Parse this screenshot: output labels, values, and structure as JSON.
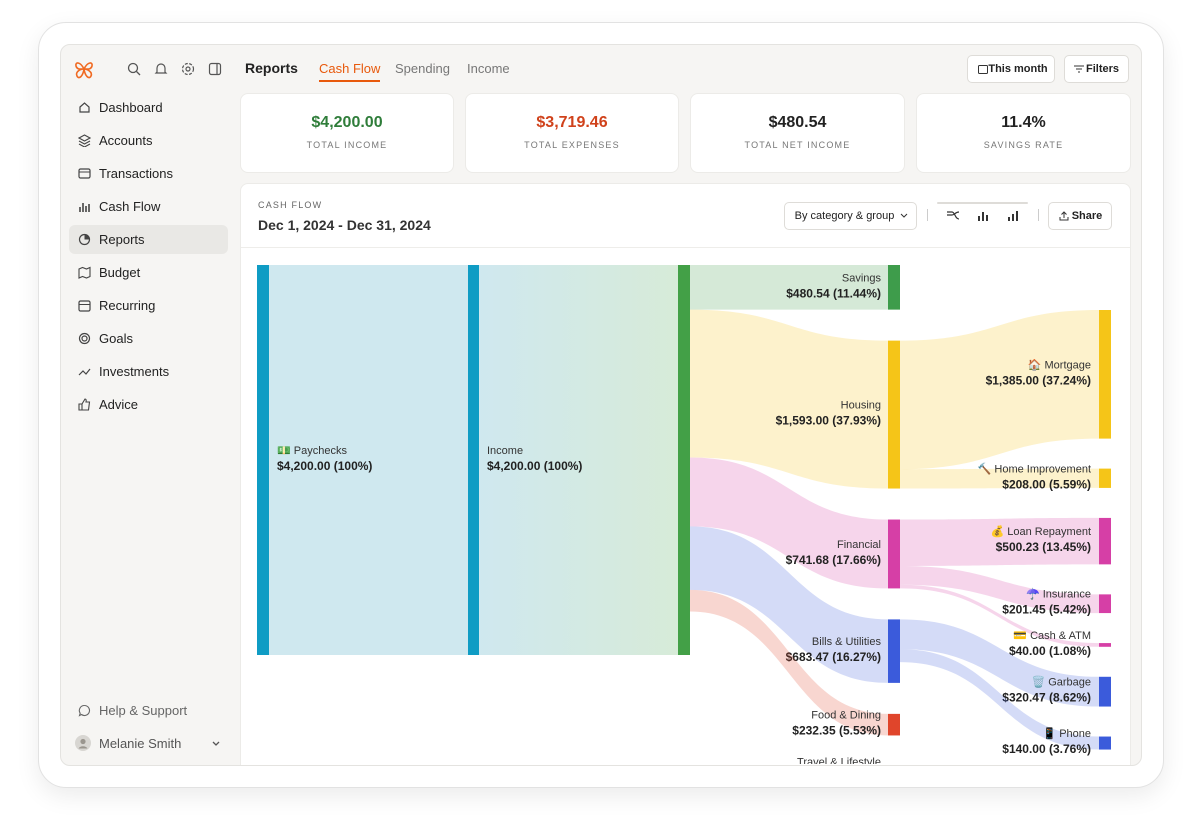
{
  "header": {
    "title": "Reports",
    "tabs": [
      "Cash Flow",
      "Spending",
      "Income"
    ],
    "buttons": [
      "This month",
      "Filters"
    ]
  },
  "sidebar": {
    "items": [
      "Dashboard",
      "Accounts",
      "Transactions",
      "Cash Flow",
      "Reports",
      "Budget",
      "Recurring",
      "Goals",
      "Investments",
      "Advice"
    ],
    "help": "Help & Support",
    "user": "Melanie Smith"
  },
  "summary": [
    {
      "value": "$4,200.00",
      "label": "TOTAL INCOME"
    },
    {
      "value": "$3,719.46",
      "label": "TOTAL EXPENSES"
    },
    {
      "value": "$480.54",
      "label": "TOTAL NET INCOME"
    },
    {
      "value": "11.4%",
      "label": "SAVINGS RATE"
    }
  ],
  "panel": {
    "label": "CASH FLOW",
    "date_range": "Dec 1, 2024 - Dec 31, 2024",
    "grouping": "By category & group",
    "share": "Share"
  },
  "sankey": {
    "source": {
      "name": "💵 Paychecks",
      "value": 4200,
      "value_label": "$4,200.00 (100%)",
      "color": "#0f9cc4"
    },
    "total": {
      "name": "Income",
      "value": 4200,
      "value_label": "$4,200.00 (100%)",
      "color": "#0f9cc4",
      "split_color": "#43a047"
    },
    "categories": [
      {
        "name": "Savings",
        "value": 480.54,
        "value_label": "$480.54 (11.44%)",
        "color": "#3e9c4b",
        "children": []
      },
      {
        "name": "Housing",
        "value": 1593,
        "value_label": "$1,593.00 (37.93%)",
        "color": "#f5c518",
        "children": [
          {
            "name": "🏠 Mortgage",
            "value": 1385,
            "value_label": "$1,385.00 (37.24%)"
          },
          {
            "name": "🔨 Home Improvement",
            "value": 208,
            "value_label": "$208.00 (5.59%)"
          }
        ]
      },
      {
        "name": "Financial",
        "value": 741.68,
        "value_label": "$741.68 (17.66%)",
        "color": "#d63fa6",
        "children": [
          {
            "name": "💰 Loan Repayment",
            "value": 500.23,
            "value_label": "$500.23 (13.45%)"
          },
          {
            "name": "☂️ Insurance",
            "value": 201.45,
            "value_label": "$201.45 (5.42%)"
          },
          {
            "name": "💳 Cash & ATM",
            "value": 40,
            "value_label": "$40.00 (1.08%)"
          }
        ]
      },
      {
        "name": "Bills & Utilities",
        "value": 683.47,
        "value_label": "$683.47 (16.27%)",
        "color": "#3b5bdb",
        "children": [
          {
            "name": "🗑️ Garbage",
            "value": 320.47,
            "value_label": "$320.47 (8.62%)"
          },
          {
            "name": "📱 Phone",
            "value": 140,
            "value_label": "$140.00 (3.76%)"
          }
        ]
      },
      {
        "name": "Food & Dining",
        "value": 232.35,
        "value_label": "$232.35 (5.53%)",
        "color": "#e0452b",
        "children": []
      },
      {
        "name": "Travel & Lifestyle",
        "color": "#7048e8",
        "children": []
      }
    ]
  }
}
